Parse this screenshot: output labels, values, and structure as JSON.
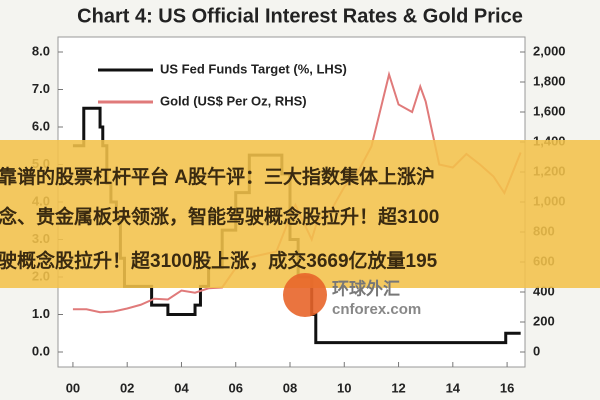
{
  "chart_data": {
    "type": "line",
    "title": "Chart 4: US Official Interest Rates & Gold Price",
    "legend": "upper left",
    "xlim": [
      1999.45,
      2016.66
    ],
    "xticks": [
      {
        "value": 2000,
        "label": "00"
      },
      {
        "value": 2002,
        "label": "02"
      },
      {
        "value": 2004,
        "label": "04"
      },
      {
        "value": 2006,
        "label": "06"
      },
      {
        "value": 2008,
        "label": "08"
      },
      {
        "value": 2010,
        "label": "10"
      },
      {
        "value": 2012,
        "label": "12"
      },
      {
        "value": 2014,
        "label": "14"
      },
      {
        "value": 2016,
        "label": "16"
      }
    ],
    "ylim": [
      -0.4,
      8.4
    ],
    "yticks": [
      {
        "value": 0,
        "label": "0.0"
      },
      {
        "value": 1,
        "label": "1.0"
      },
      {
        "value": 2,
        "label": "2.0"
      },
      {
        "value": 3,
        "label": "3.0"
      },
      {
        "value": 4,
        "label": "4.0"
      },
      {
        "value": 5,
        "label": "5.0"
      },
      {
        "value": 6,
        "label": "6.0"
      },
      {
        "value": 7,
        "label": "7.0"
      },
      {
        "value": 8,
        "label": "8.0"
      }
    ],
    "y2lim": [
      -100,
      2100
    ],
    "y2ticks": [
      0,
      200,
      400,
      600,
      800,
      {
        "value": 1000,
        "label": "1,000"
      },
      {
        "value": 1200,
        "label": "1,200"
      },
      {
        "value": 1400,
        "label": "1,400"
      },
      {
        "value": 1600,
        "label": "1,600"
      },
      {
        "value": 1800,
        "label": "1,800"
      },
      {
        "value": 2000,
        "label": "2,000"
      }
    ],
    "series": [
      {
        "name": "US Fed Funds Target (%, LHS)",
        "color": "#111111",
        "drawstyle": "steps-post",
        "x": [
          2000.0,
          2000.4,
          2001.0,
          2001.1,
          2001.25,
          2001.4,
          2001.6,
          2001.75,
          2001.9,
          2002.9,
          2003.5,
          2004.5,
          2004.7,
          2005.0,
          2005.5,
          2006.0,
          2006.5,
          2007.7,
          2008.0,
          2008.3,
          2008.8,
          2008.95,
          2015.95,
          2016.5
        ],
        "values": [
          5.5,
          6.5,
          6.0,
          5.5,
          4.5,
          4.0,
          3.5,
          2.5,
          1.75,
          1.25,
          1.0,
          1.25,
          1.75,
          2.25,
          3.25,
          4.25,
          5.25,
          4.75,
          3.0,
          2.0,
          1.0,
          0.25,
          0.5,
          0.5
        ]
      },
      {
        "name": "Gold (US$ Per Oz, RHS)",
        "color": "#e07a7a",
        "axis": "y2",
        "x": [
          2000,
          2000.5,
          2001,
          2001.5,
          2002,
          2002.5,
          2003,
          2003.5,
          2004,
          2004.5,
          2005,
          2005.5,
          2006,
          2006.5,
          2007,
          2007.5,
          2008,
          2008.2,
          2008.8,
          2009,
          2009.5,
          2010,
          2010.5,
          2011,
          2011.65,
          2012,
          2012.5,
          2012.8,
          2013,
          2013.5,
          2014,
          2014.5,
          2015,
          2015.5,
          2015.9,
          2016.5
        ],
        "values": [
          285,
          285,
          265,
          270,
          290,
          315,
          355,
          350,
          410,
          395,
          425,
          430,
          560,
          630,
          650,
          670,
          900,
          980,
          750,
          870,
          940,
          1100,
          1200,
          1370,
          1850,
          1650,
          1600,
          1770,
          1670,
          1250,
          1230,
          1320,
          1250,
          1170,
          1060,
          1330
        ]
      }
    ]
  },
  "overlay": {
    "lines": [
      "靠谱的股票杠杆平台 A股午评：三大指数集体上涨沪",
      "念、贵金属板块领涨，智能驾驶概念股拉升！超3100",
      "驶概念股拉升！超3100股上涨，成交3669亿放量195"
    ],
    "watermark": "环球外汇",
    "watermark_url": "cnforex.com"
  }
}
